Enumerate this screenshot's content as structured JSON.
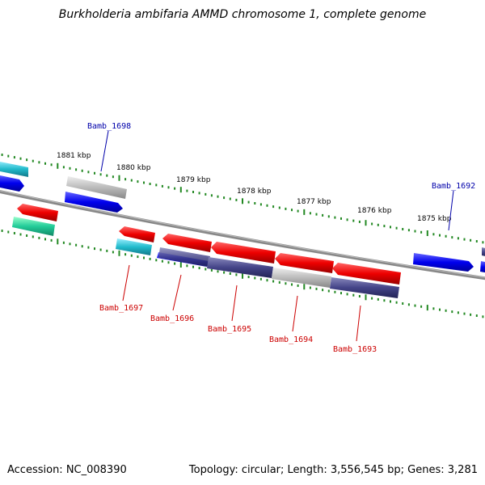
{
  "title": "Burkholderia ambifaria AMMD chromosome 1, complete genome",
  "footer": {
    "accession": "Accession: NC_008390",
    "summary": "Topology: circular; Length: 3,556,545 bp; Genes: 3,281"
  },
  "ruler": [
    {
      "label": "1881 kbp"
    },
    {
      "label": "1880 kbp"
    },
    {
      "label": "1879 kbp"
    },
    {
      "label": "1878 kbp"
    },
    {
      "label": "1877 kbp"
    },
    {
      "label": "1876 kbp"
    },
    {
      "label": "1875 kbp"
    }
  ],
  "labels_forward": [
    {
      "name": "Bamb_1698",
      "color": "#0000aa"
    },
    {
      "name": "Bamb_1692",
      "color": "#0000aa"
    }
  ],
  "labels_reverse": [
    {
      "name": "Bamb_1697",
      "color": "#cc0000"
    },
    {
      "name": "Bamb_1696",
      "color": "#cc0000"
    },
    {
      "name": "Bamb_1695",
      "color": "#cc0000"
    },
    {
      "name": "Bamb_1694",
      "color": "#cc0000"
    },
    {
      "name": "Bamb_1693",
      "color": "#cc0000"
    }
  ],
  "colors": {
    "backbone": "#777777",
    "ticks": "#228822",
    "forward_cds": "#0000ee",
    "reverse_cds": "#ee0000",
    "cyan": "#22bbcc",
    "teal": "#22cc99",
    "gray": "#aaaaaa",
    "slate": "#444488"
  }
}
